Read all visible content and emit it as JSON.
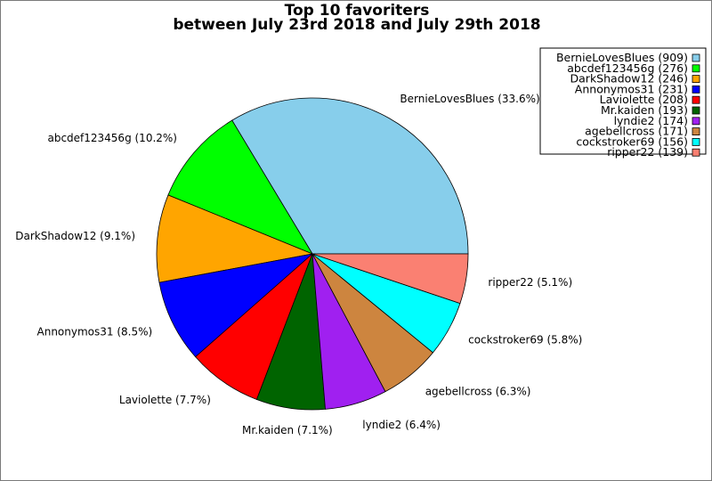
{
  "chart_data": {
    "type": "pie",
    "title_lines": [
      "Top 10 favoriters",
      "between July 23rd 2018 and July 29th 2018"
    ],
    "slices": [
      {
        "name": "BernieLovesBlues",
        "value": 909,
        "percent_label": "BernieLovesBlues (33.6%)",
        "legend_label": "BernieLovesBlues (909)",
        "color": "#87CEEB"
      },
      {
        "name": "abcdef123456g",
        "value": 276,
        "percent_label": "abcdef123456g (10.2%)",
        "legend_label": "abcdef123456g (276)",
        "color": "#00FF00"
      },
      {
        "name": "DarkShadow12",
        "value": 246,
        "percent_label": "DarkShadow12 (9.1%)",
        "legend_label": "DarkShadow12 (246)",
        "color": "#FFA500"
      },
      {
        "name": "Annonymos31",
        "value": 231,
        "percent_label": "Annonymos31 (8.5%)",
        "legend_label": "Annonymos31 (231)",
        "color": "#0000FF"
      },
      {
        "name": "Laviolette",
        "value": 208,
        "percent_label": "Laviolette (7.7%)",
        "legend_label": "Laviolette (208)",
        "color": "#FF0000"
      },
      {
        "name": "Mr.kaiden",
        "value": 193,
        "percent_label": "Mr.kaiden (7.1%)",
        "legend_label": "Mr.kaiden (193)",
        "color": "#006400"
      },
      {
        "name": "lyndie2",
        "value": 174,
        "percent_label": "lyndie2 (6.4%)",
        "legend_label": "lyndie2 (174)",
        "color": "#A020F0"
      },
      {
        "name": "agebellcross",
        "value": 171,
        "percent_label": "agebellcross (6.3%)",
        "legend_label": "agebellcross (171)",
        "color": "#CD853F"
      },
      {
        "name": "cockstroker69",
        "value": 156,
        "percent_label": "cockstroker69 (5.8%)",
        "legend_label": "cockstroker69 (156)",
        "color": "#00FFFF"
      },
      {
        "name": "ripper22",
        "value": 139,
        "percent_label": "ripper22 (5.1%)",
        "legend_label": "ripper22 (139)",
        "color": "#FA8072"
      }
    ],
    "start_angle": "3 o'clock, counterclockwise",
    "legend_placement": "top-right"
  }
}
